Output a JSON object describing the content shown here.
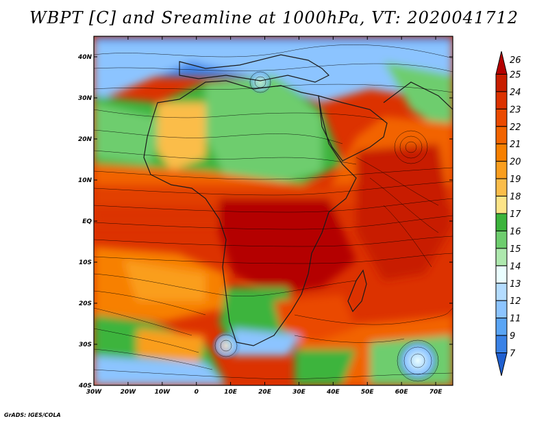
{
  "title": "WBPT [C] and Sreamline at 1000hPa, VT: 2020041712",
  "credit": "GrADS: IGES/COLA",
  "lon_labels": [
    "30W",
    "20W",
    "10W",
    "0",
    "10E",
    "20E",
    "30E",
    "40E",
    "50E",
    "60E",
    "70E"
  ],
  "lat_labels": [
    "40N",
    "30N",
    "20N",
    "10N",
    "EQ",
    "10S",
    "20S",
    "30S",
    "40S"
  ],
  "colorbar": {
    "levels": [
      "26",
      "25",
      "24",
      "23",
      "22",
      "21",
      "20",
      "19",
      "18",
      "17",
      "16",
      "15",
      "14",
      "13",
      "12",
      "11",
      "9",
      "7"
    ],
    "colors": [
      "#b40000",
      "#c81e00",
      "#dc3200",
      "#ea4a00",
      "#f26400",
      "#f78000",
      "#fa9e1e",
      "#fbbd4a",
      "#fde488",
      "#3cb43c",
      "#6ecd6e",
      "#aee8ae",
      "#eafeff",
      "#b4dcff",
      "#8cc4ff",
      "#5aa5f5",
      "#3a82e6",
      "#2060d0"
    ]
  },
  "map": {
    "lon_range": [
      -30,
      75
    ],
    "lat_range": [
      -40,
      45
    ],
    "regions": [
      "Africa",
      "Arabian Peninsula",
      "Indian Ocean",
      "Atlantic Ocean",
      "Mediterranean",
      "Madagascar"
    ]
  }
}
